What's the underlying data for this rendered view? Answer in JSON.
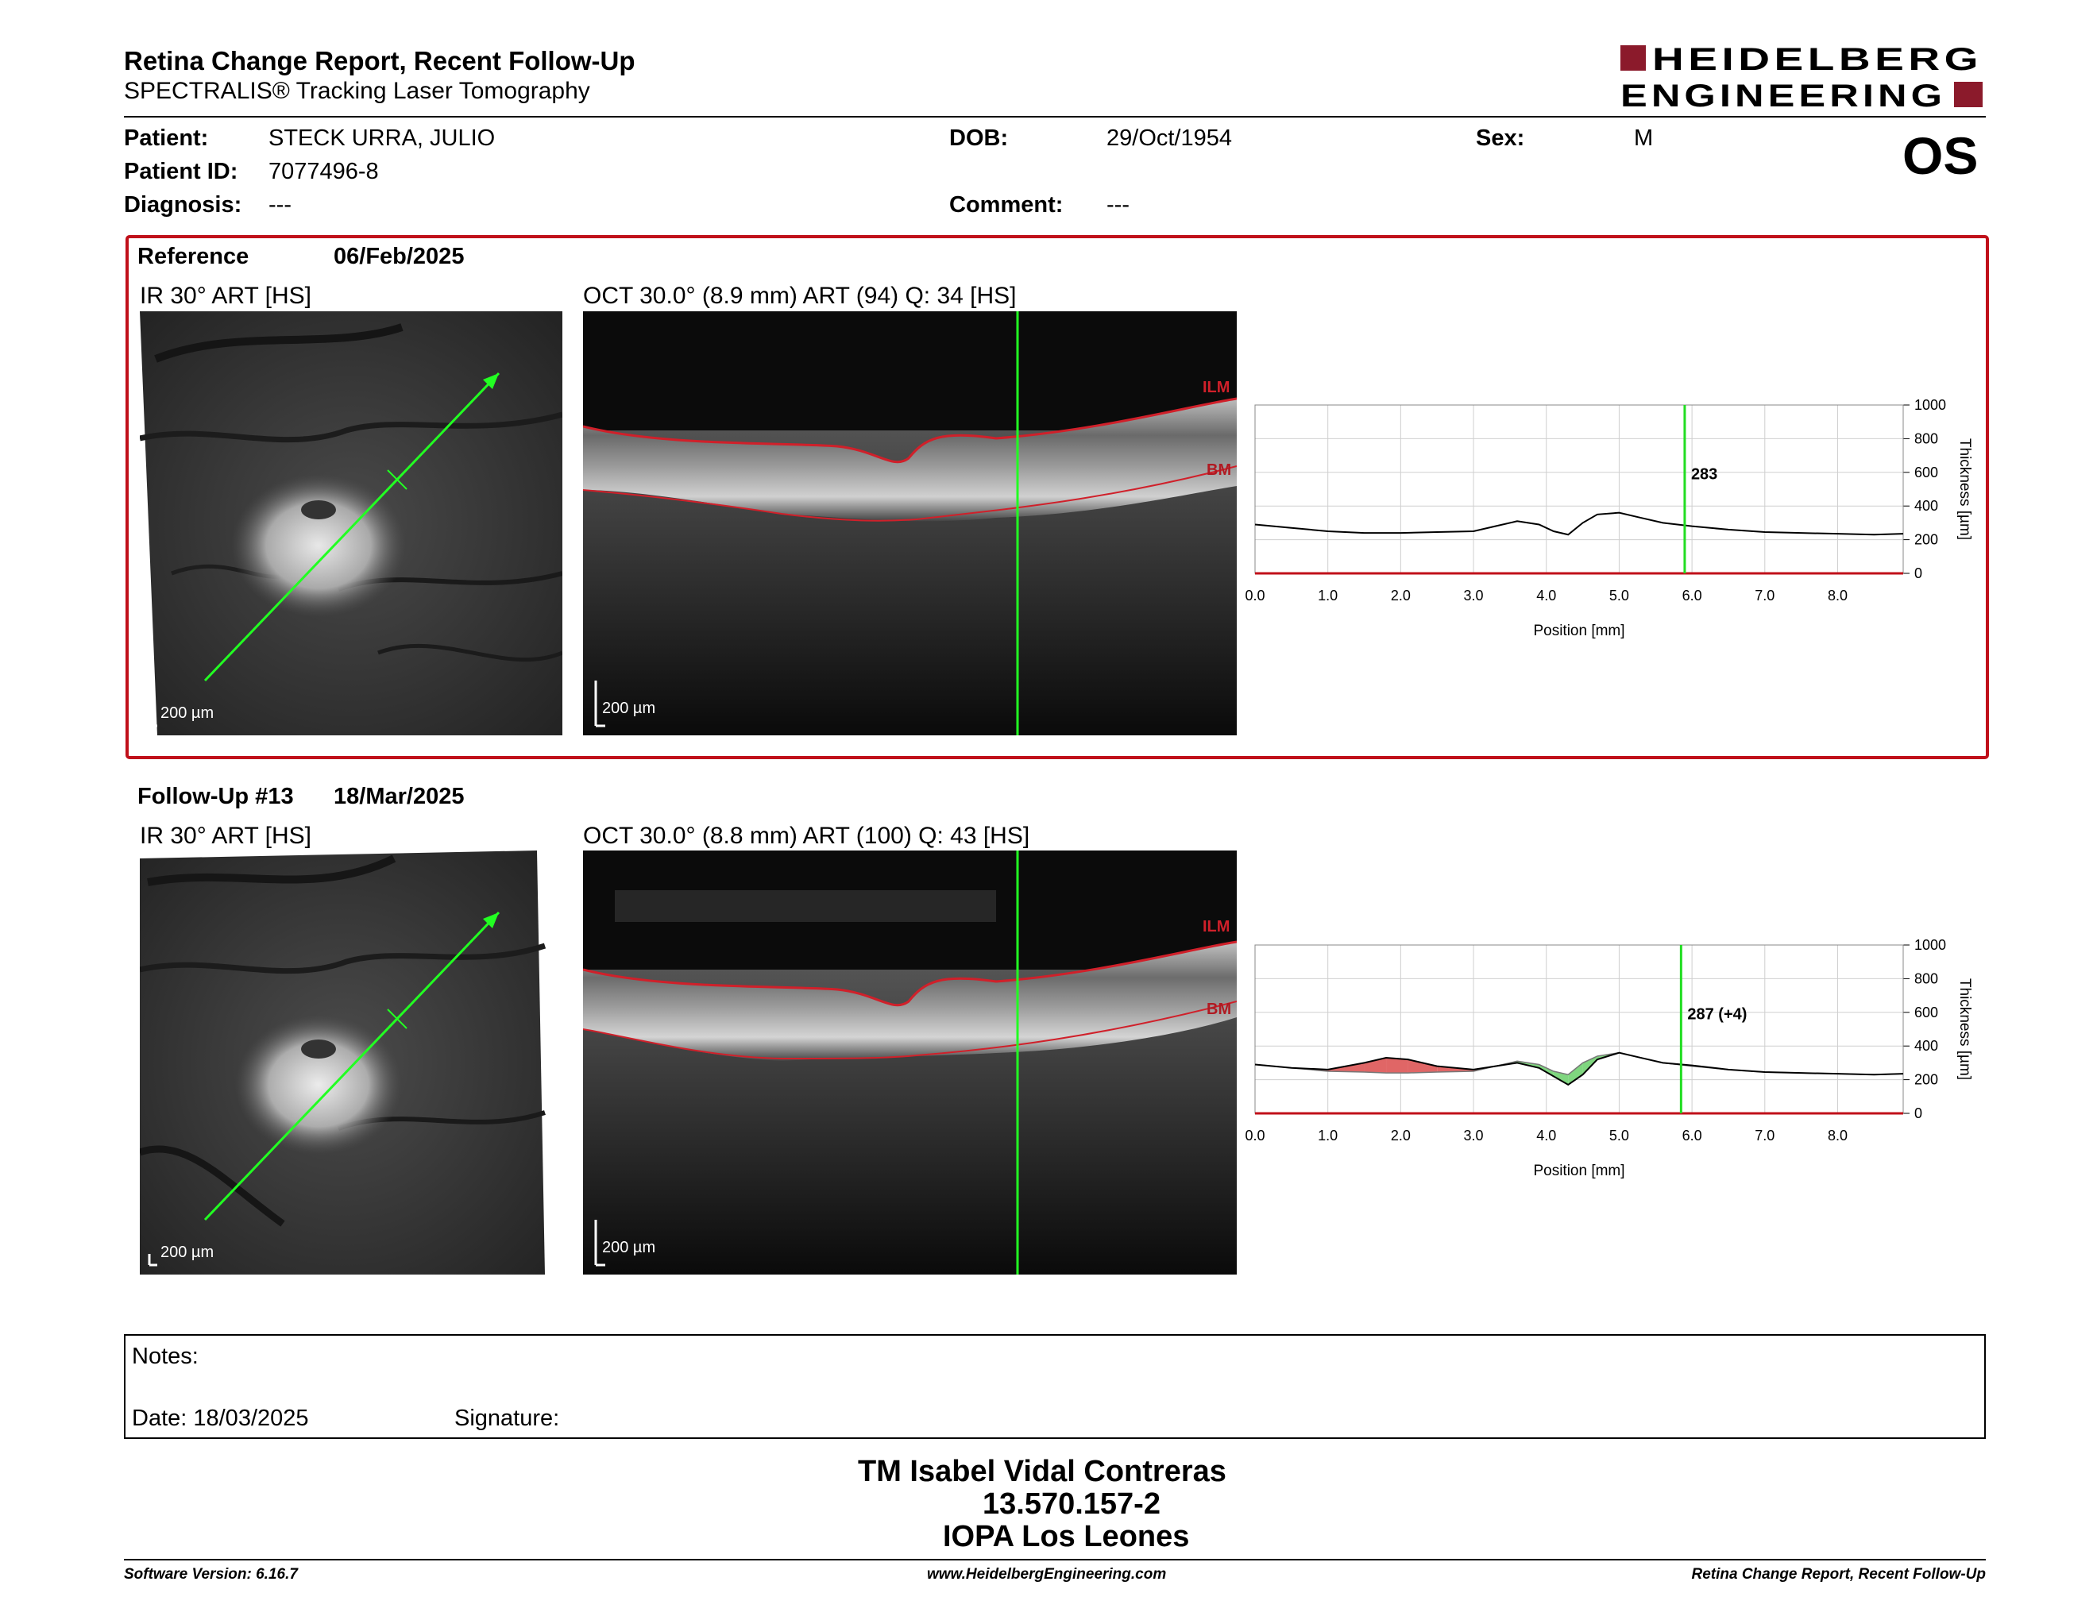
{
  "header": {
    "title": "Retina Change Report, Recent Follow-Up",
    "subtitle": "SPECTRALIS® Tracking Laser Tomography",
    "logo_line1": "HEIDELBERG",
    "logo_line2": "ENGINEERING",
    "brand_color": "#8b1a2b"
  },
  "patient": {
    "patient_label": "Patient:",
    "patient_name": "STECK URRA, JULIO",
    "id_label": "Patient ID:",
    "id_value": "7077496-8",
    "diagnosis_label": "Diagnosis:",
    "diagnosis_value": "---",
    "dob_label": "DOB:",
    "dob_value": "29/Oct/1954",
    "comment_label": "Comment:",
    "comment_value": "---",
    "sex_label": "Sex:",
    "sex_value": "M",
    "eye": "OS"
  },
  "reference": {
    "title": "Reference",
    "date": "06/Feb/2025",
    "ir_label": "IR 30° ART [HS]",
    "oct_label": "OCT 30.0° (8.9 mm) ART (94) Q: 34 [HS]",
    "scale_ir": "200 µm",
    "scale_oct": "200 µm",
    "ilm": "ILM",
    "bm": "BM"
  },
  "followup": {
    "title": "Follow-Up #13",
    "date": "18/Mar/2025",
    "ir_label": "IR 30° ART [HS]",
    "oct_label": "OCT 30.0° (8.8 mm) ART (100) Q: 43 [HS]",
    "scale_ir": "200 µm",
    "scale_oct": "200 µm",
    "ilm": "ILM",
    "bm": "BM"
  },
  "chart_data": [
    {
      "type": "line",
      "xlabel": "Position [mm]",
      "ylabel": "Thickness [µm]",
      "xlim": [
        0,
        8.9
      ],
      "ylim": [
        0,
        1000
      ],
      "x_ticks": [
        "0.0",
        "1.0",
        "2.0",
        "3.0",
        "4.0",
        "5.0",
        "6.0",
        "7.0",
        "8.0"
      ],
      "y_ticks": [
        "0",
        "200",
        "400",
        "600",
        "800",
        "1000"
      ],
      "marker_x": 5.9,
      "marker_label": "283",
      "series": [
        {
          "x": [
            0,
            0.5,
            1.0,
            1.5,
            2.0,
            2.5,
            3.0,
            3.3,
            3.6,
            3.9,
            4.1,
            4.3,
            4.5,
            4.7,
            5.0,
            5.3,
            5.6,
            6.0,
            6.5,
            7.0,
            7.5,
            8.0,
            8.5,
            8.9
          ],
          "values": [
            290,
            270,
            250,
            240,
            240,
            245,
            250,
            280,
            310,
            290,
            250,
            230,
            300,
            350,
            360,
            330,
            300,
            280,
            260,
            245,
            240,
            235,
            230,
            235
          ]
        }
      ]
    },
    {
      "type": "area",
      "xlabel": "Position [mm]",
      "ylabel": "Thickness [µm]",
      "xlim": [
        0,
        8.9
      ],
      "ylim": [
        0,
        1000
      ],
      "x_ticks": [
        "0.0",
        "1.0",
        "2.0",
        "3.0",
        "4.0",
        "5.0",
        "6.0",
        "7.0",
        "8.0"
      ],
      "y_ticks": [
        "0",
        "200",
        "400",
        "600",
        "800",
        "1000"
      ],
      "marker_x": 5.85,
      "marker_label": "287 (+4)",
      "series": [
        {
          "x": [
            0,
            0.5,
            1.0,
            1.5,
            1.8,
            2.1,
            2.5,
            3.0,
            3.3,
            3.6,
            3.9,
            4.1,
            4.3,
            4.5,
            4.7,
            5.0,
            5.3,
            5.6,
            6.0,
            6.5,
            7.0,
            7.5,
            8.0,
            8.5,
            8.9
          ],
          "values": [
            290,
            270,
            260,
            300,
            330,
            320,
            280,
            260,
            280,
            300,
            270,
            220,
            170,
            230,
            320,
            360,
            330,
            300,
            285,
            260,
            245,
            240,
            235,
            230,
            235
          ]
        },
        {
          "x": [
            0,
            0.5,
            1.0,
            1.5,
            1.8,
            2.1,
            2.5,
            3.0,
            3.3,
            3.6,
            3.9,
            4.1,
            4.3,
            4.5,
            4.7,
            5.0,
            5.3,
            5.6,
            6.0,
            6.5,
            7.0,
            7.5,
            8.0,
            8.5,
            8.9
          ],
          "values": [
            290,
            270,
            250,
            245,
            240,
            240,
            245,
            250,
            280,
            310,
            290,
            250,
            230,
            300,
            340,
            360,
            330,
            300,
            280,
            260,
            245,
            240,
            235,
            230,
            235
          ]
        }
      ],
      "increase_color": "#e06666",
      "decrease_color": "#7fd67f"
    }
  ],
  "notes": {
    "label": "Notes:",
    "date_label": "Date: 18/03/2025",
    "signature_label": "Signature:"
  },
  "signatory": {
    "name": "TM Isabel Vidal Contreras",
    "rut": "13.570.157-2",
    "place": "IOPA Los Leones"
  },
  "footer": {
    "left": "Software Version: 6.16.7",
    "center": "www.HeidelbergEngineering.com",
    "right": "Retina Change Report, Recent Follow-Up"
  }
}
